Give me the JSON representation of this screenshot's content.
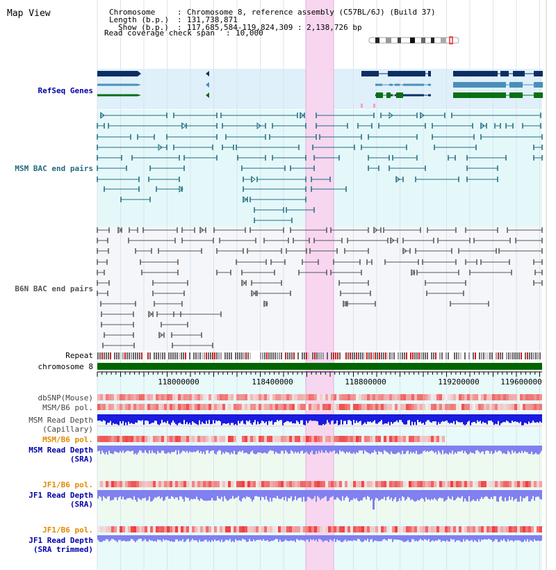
{
  "title": "Map View",
  "info": {
    "chromosome_label": "Chromosome",
    "chromosome_value": "Chromosome 8, reference assembly (C57BL/6J) (Build 37)",
    "length_label": "Length (b.p.)",
    "length_value": "131,738,871",
    "show_label": "Show (b.p.)",
    "show_value": "117,685,584-119,824,309 : 2,138,726 bp",
    "coverage_label": "Read coverage check span",
    "coverage_value": "10,000"
  },
  "tracks": {
    "refseq": "RefSeq Genes",
    "msm_bac": "MSM BAC end pairs",
    "b6n_bac": "B6N BAC end pairs",
    "repeat": "Repeat",
    "chromosome": "chromosome 8",
    "dbsnp": "dbSNP(Mouse)",
    "msm_b6_pol": "MSM/B6 pol.",
    "msm_depth_cap_1": "MSM Read Depth",
    "msm_depth_cap_2": "(Capillary)",
    "msm_b6_pol_sra": "MSM/B6 pol.",
    "msm_depth_sra_1": "MSM Read Depth",
    "msm_depth_sra_2": "(SRA)",
    "jf1_b6_pol": "JF1/B6 pol.",
    "jf1_depth_sra_1": "JF1 Read Depth",
    "jf1_depth_sra_2": "(SRA)",
    "jf1_b6_pol_trim": "JF1/B6 pol.",
    "jf1_depth_trim_1": "JF1 Read Depth",
    "jf1_depth_trim_2": "(SRA trimmed)"
  },
  "ruler": {
    "ticks": [
      "118000000",
      "118400000",
      "118800000",
      "119200000",
      "119600000"
    ]
  },
  "colors": {
    "refseq_bg": "#dff0fa",
    "msm_bg": "#e4f8fa",
    "b6n_bg": "#f4f6fa",
    "highlight": "#f8d4ef",
    "gene_dark": "#0b2e63",
    "gene_mid": "#4a8fba",
    "gene_green": "#0a6f16",
    "msm_pair": "#1f6b7e",
    "b6n_pair": "#555555",
    "chromosome": "#006600",
    "depth_blue": "#1a1ae0",
    "depth_light": "#8080f0",
    "label_blue": "#0000aa",
    "label_orange": "#e08a00"
  }
}
